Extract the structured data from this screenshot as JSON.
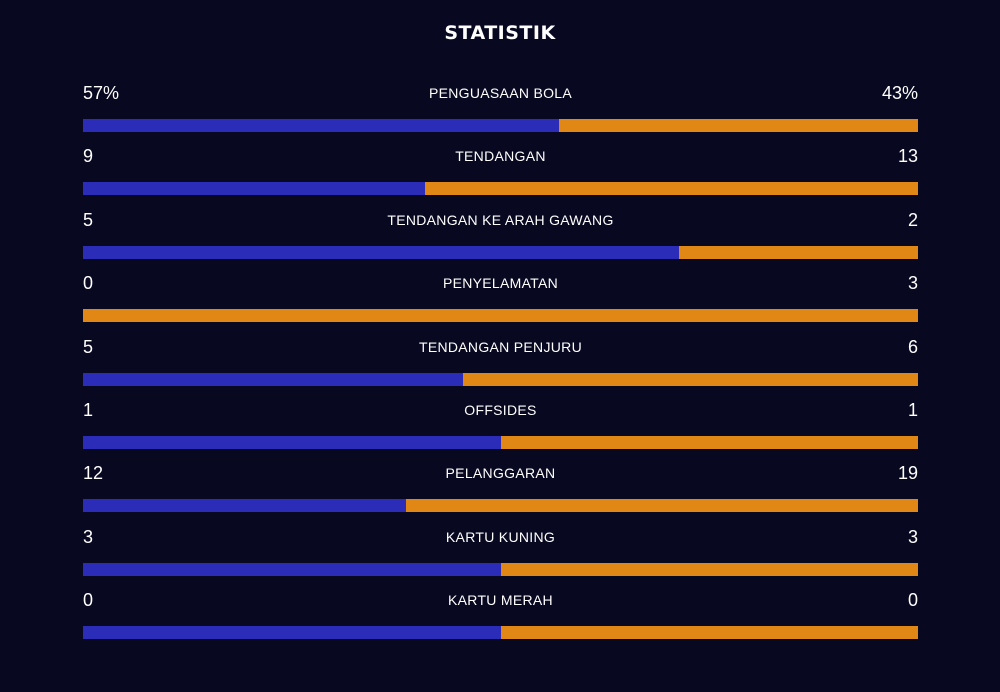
{
  "title": "STATISTIK",
  "colors": {
    "background": "#080821",
    "home": "#2b2cb8",
    "away": "#e08716"
  },
  "stats": [
    {
      "label": "PENGUASAAN BOLA",
      "home": "57%",
      "away": "43%",
      "home_value": 57,
      "away_value": 43
    },
    {
      "label": "TENDANGAN",
      "home": "9",
      "away": "13",
      "home_value": 9,
      "away_value": 13
    },
    {
      "label": "TENDANGAN KE ARAH GAWANG",
      "home": "5",
      "away": "2",
      "home_value": 5,
      "away_value": 2
    },
    {
      "label": "PENYELAMATAN",
      "home": "0",
      "away": "3",
      "home_value": 0,
      "away_value": 3
    },
    {
      "label": "TENDANGAN PENJURU",
      "home": "5",
      "away": "6",
      "home_value": 5,
      "away_value": 6
    },
    {
      "label": "OFFSIDES",
      "home": "1",
      "away": "1",
      "home_value": 1,
      "away_value": 1
    },
    {
      "label": "PELANGGARAN",
      "home": "12",
      "away": "19",
      "home_value": 12,
      "away_value": 19
    },
    {
      "label": "KARTU KUNING",
      "home": "3",
      "away": "3",
      "home_value": 3,
      "away_value": 3
    },
    {
      "label": "KARTU MERAH",
      "home": "0",
      "away": "0",
      "home_value": 0,
      "away_value": 0
    }
  ]
}
